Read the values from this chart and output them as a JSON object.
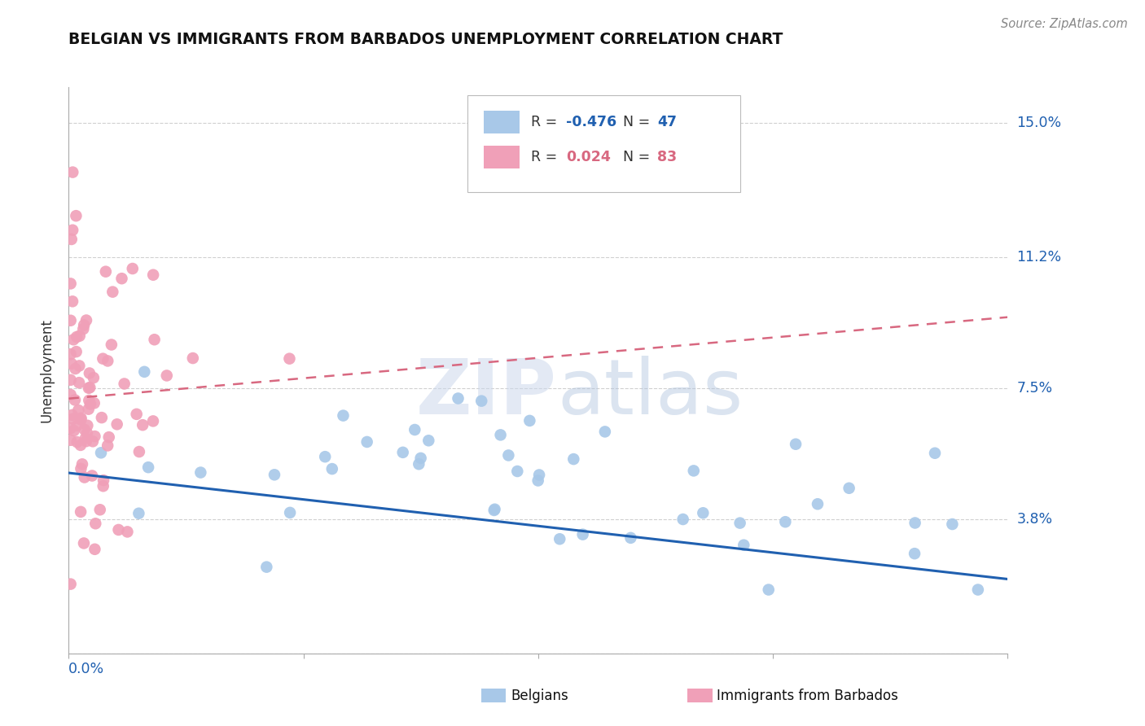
{
  "title": "BELGIAN VS IMMIGRANTS FROM BARBADOS UNEMPLOYMENT CORRELATION CHART",
  "source": "Source: ZipAtlas.com",
  "ylabel": "Unemployment",
  "yticks": [
    0.0,
    0.038,
    0.075,
    0.112,
    0.15
  ],
  "ytick_labels": [
    "",
    "3.8%",
    "7.5%",
    "11.2%",
    "15.0%"
  ],
  "xlim": [
    0.0,
    0.5
  ],
  "ylim": [
    0.0,
    0.16
  ],
  "legend_blue_r": "-0.476",
  "legend_blue_n": "47",
  "legend_pink_r": "0.024",
  "legend_pink_n": "83",
  "blue_color": "#a8c8e8",
  "pink_color": "#f0a0b8",
  "blue_line_color": "#2060b0",
  "pink_line_color": "#d86880",
  "grid_color": "#d0d0d0",
  "background_color": "#ffffff",
  "xtick_positions": [
    0.0,
    0.125,
    0.25,
    0.375,
    0.5
  ]
}
